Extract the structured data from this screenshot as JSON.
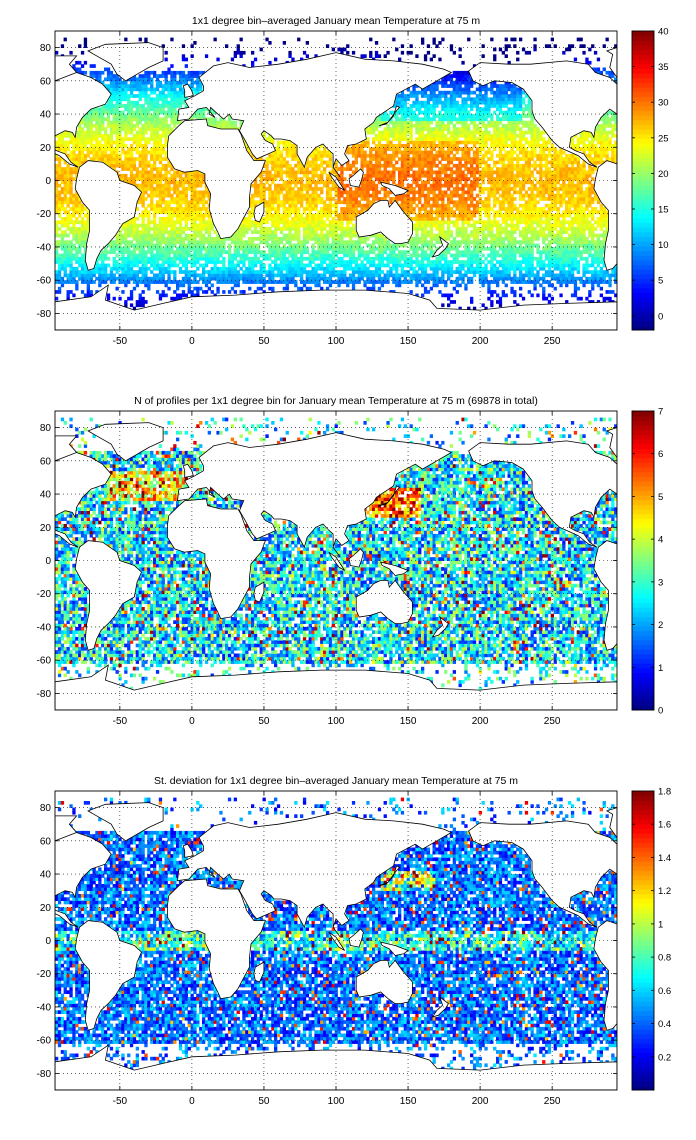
{
  "figure": {
    "background": "#ffffff"
  },
  "chart_data": [
    {
      "type": "heatmap",
      "title": "1x1 degree bin–averaged January mean Temperature at 75 m",
      "xlim": [
        -95,
        295
      ],
      "ylim": [
        -90,
        90
      ],
      "xticks": [
        -50,
        0,
        50,
        100,
        150,
        200,
        250
      ],
      "yticks": [
        -80,
        -60,
        -40,
        -20,
        0,
        20,
        40,
        60,
        80
      ],
      "grid": true,
      "colormap": "jet",
      "colorbar": {
        "min": -2,
        "max": 40,
        "ticks": [
          0,
          5,
          10,
          15,
          20,
          25,
          30,
          35,
          40
        ]
      },
      "field": "temperature",
      "data_summary": "Warm (25–30) tropical waters; west Pacific warm pool up to about 30; values decrease poleward to 10 near 40S and 0 to -2 south of 60S and in the far North Pacific/Atlantic."
    },
    {
      "type": "heatmap",
      "title": "N of profiles per 1x1 degree bin for January mean Temperature at 75 m (69878 in total)",
      "xlim": [
        -95,
        295
      ],
      "ylim": [
        -90,
        90
      ],
      "xticks": [
        -50,
        0,
        50,
        100,
        150,
        200,
        250
      ],
      "yticks": [
        -80,
        -60,
        -40,
        -20,
        0,
        20,
        40,
        60,
        80
      ],
      "grid": true,
      "colormap": "jet",
      "colorbar": {
        "min": 0,
        "max": 7,
        "ticks": [
          0,
          1,
          2,
          3,
          4,
          5,
          6,
          7
        ]
      },
      "field": "count",
      "data_summary": "Mostly 1–3 profiles per bin; highest counts (up to 7) around Japan, North Atlantic, Red Sea/Arabian Sea and western Pacific."
    },
    {
      "type": "heatmap",
      "title": "St. deviation for 1x1 degree bin–averaged January mean Temperature at 75 m",
      "xlim": [
        -95,
        295
      ],
      "ylim": [
        -90,
        90
      ],
      "xticks": [
        -50,
        0,
        50,
        100,
        150,
        200,
        250
      ],
      "yticks": [
        -80,
        -60,
        -40,
        -20,
        0,
        20,
        40,
        60,
        80
      ],
      "grid": true,
      "colormap": "jet",
      "colorbar": {
        "min": 0,
        "max": 1.8,
        "ticks": [
          0.2,
          0.4,
          0.6,
          0.8,
          1,
          1.2,
          1.4,
          1.6,
          1.8
        ]
      },
      "field": "stdev",
      "data_summary": "Mostly 0.2–0.6; elevated (1.2–1.8) along the equatorial band, Kuroshio/Gulf Stream and near 40S."
    }
  ]
}
